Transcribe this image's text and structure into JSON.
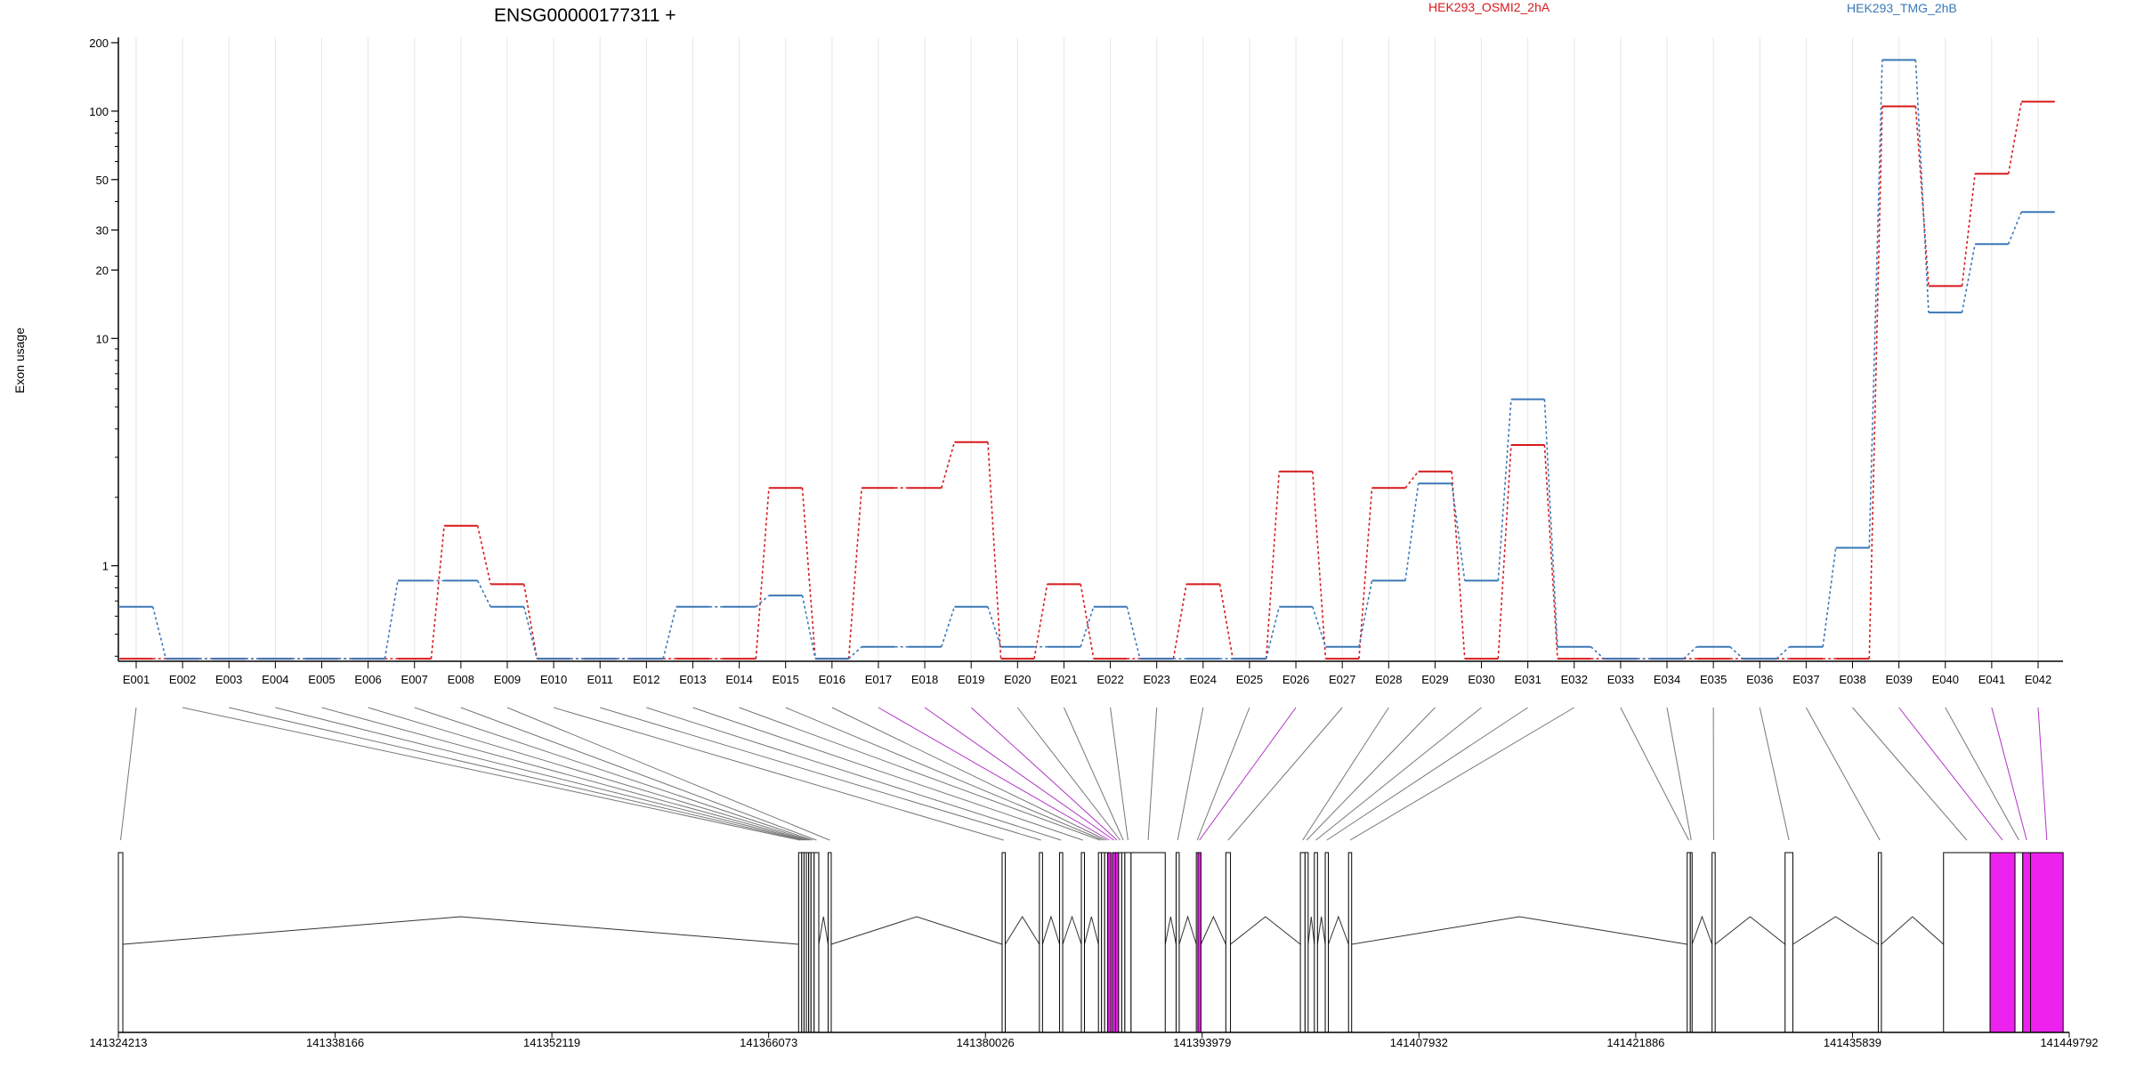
{
  "chart_data": {
    "type": "line",
    "title": "ENSG00000177311 +",
    "ylabel": "Exon usage",
    "yscale": "log",
    "ylim": [
      0.38,
      200
    ],
    "yticks": [
      1,
      10,
      20,
      30,
      50,
      100,
      200
    ],
    "grid": "vertical",
    "colors": {
      "HEK293_OSMI2_2hA": "#d7191c",
      "HEK293_TMG_2hB": "#3a78b8",
      "highlight": "#ee22ee"
    },
    "categories": [
      "E001",
      "E002",
      "E003",
      "E004",
      "E005",
      "E006",
      "E007",
      "E008",
      "E009",
      "E010",
      "E011",
      "E012",
      "E013",
      "E014",
      "E015",
      "E016",
      "E017",
      "E018",
      "E019",
      "E020",
      "E021",
      "E022",
      "E023",
      "E024",
      "E025",
      "E026",
      "E027",
      "E028",
      "E029",
      "E030",
      "E031",
      "E032",
      "E033",
      "E034",
      "E035",
      "E036",
      "E037",
      "E038",
      "E039",
      "E040",
      "E041",
      "E042"
    ],
    "series": [
      {
        "name": "HEK293_OSMI2_2hA",
        "color": "#d7191c",
        "values": [
          0.39,
          0.39,
          0.39,
          0.39,
          0.39,
          0.39,
          0.39,
          1.5,
          0.83,
          0.39,
          0.39,
          0.39,
          0.39,
          0.39,
          2.2,
          0.39,
          2.2,
          2.2,
          3.5,
          0.39,
          0.83,
          0.39,
          0.39,
          0.83,
          0.39,
          2.6,
          0.39,
          2.2,
          2.6,
          0.39,
          3.4,
          0.39,
          0.39,
          0.39,
          0.39,
          0.39,
          0.39,
          0.39,
          105,
          17,
          53,
          110
        ]
      },
      {
        "name": "HEK293_TMG_2hB",
        "color": "#3a78b8",
        "values": [
          0.66,
          0.39,
          0.39,
          0.39,
          0.39,
          0.39,
          0.86,
          0.86,
          0.66,
          0.39,
          0.39,
          0.39,
          0.66,
          0.66,
          0.74,
          0.39,
          0.44,
          0.44,
          0.66,
          0.44,
          0.44,
          0.66,
          0.39,
          0.39,
          0.39,
          0.66,
          0.44,
          0.86,
          2.3,
          0.86,
          5.4,
          0.44,
          0.39,
          0.39,
          0.44,
          0.39,
          0.44,
          1.2,
          168,
          13,
          26,
          36
        ]
      }
    ],
    "highlighted_exons": [
      "E017",
      "E018",
      "E019",
      "E026",
      "E039",
      "E041",
      "E042"
    ],
    "genomic_axis": {
      "range": [
        141324213,
        141449792
      ],
      "tick_labels": [
        "141324213",
        "141338166",
        "141352119",
        "141366073",
        "141380026",
        "141393979",
        "141407932",
        "141421886",
        "141435839",
        "141449792"
      ]
    },
    "exon_coords": [
      [
        141324213,
        141324500
      ],
      [
        141368000,
        141368200
      ],
      [
        141368200,
        141368350
      ],
      [
        141368350,
        141368500
      ],
      [
        141368500,
        141368650
      ],
      [
        141368650,
        141368800
      ],
      [
        141368800,
        141369000
      ],
      [
        141369000,
        141369300
      ],
      [
        141369900,
        141370100
      ],
      [
        141381100,
        141381300
      ],
      [
        141383500,
        141383700
      ],
      [
        141384800,
        141385000
      ],
      [
        141386200,
        141386400
      ],
      [
        141387300,
        141387500
      ],
      [
        141387500,
        141387700
      ],
      [
        141387700,
        141387900
      ],
      [
        141387900,
        141388100
      ],
      [
        141388200,
        141388400
      ],
      [
        141388400,
        141388600
      ],
      [
        141388600,
        141388800
      ],
      [
        141388800,
        141389000
      ],
      [
        141389000,
        141389400
      ],
      [
        141389400,
        141391600
      ],
      [
        141392300,
        141392500
      ],
      [
        141393600,
        141393700
      ],
      [
        141393700,
        141393900
      ],
      [
        141395500,
        141395800
      ],
      [
        141400300,
        141400600
      ],
      [
        141400600,
        141400800
      ],
      [
        141401200,
        141401400
      ],
      [
        141401900,
        141402100
      ],
      [
        141403400,
        141403600
      ],
      [
        141425200,
        141425400
      ],
      [
        141425400,
        141425500
      ],
      [
        141426800,
        141427000
      ],
      [
        141431500,
        141432000
      ],
      [
        141437500,
        141437700
      ],
      [
        141441700,
        141444700
      ],
      [
        141444700,
        141446300
      ],
      [
        141446300,
        141446800
      ],
      [
        141446800,
        141447300
      ],
      [
        141447300,
        141449400
      ]
    ]
  }
}
